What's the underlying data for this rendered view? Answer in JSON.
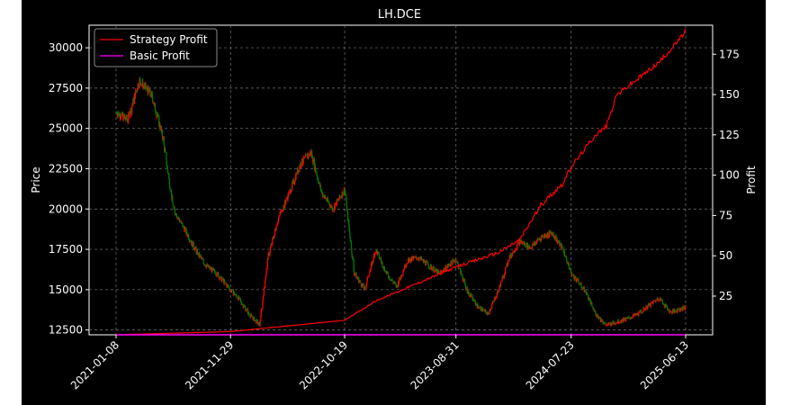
{
  "chart_data": {
    "type": "candlestick+line",
    "title": "LH.DCE",
    "ylabel_left": "Price",
    "ylabel_right": "Profit",
    "x_ticks": [
      "2021-01-08",
      "2021-11-29",
      "2022-10-19",
      "2023-08-31",
      "2024-07-23",
      "2025-06-13"
    ],
    "y_left_ticks": [
      12500,
      15000,
      17500,
      20000,
      22500,
      25000,
      27500,
      30000
    ],
    "y_right_ticks": [
      25,
      50,
      75,
      100,
      125,
      150,
      175
    ],
    "ylim_left": [
      12200,
      31400
    ],
    "ylim_right": [
      1,
      193
    ],
    "grid": true,
    "legend_position": "upper-left",
    "legend": [
      {
        "label": "Strategy Profit",
        "color": "#ff0000"
      },
      {
        "label": "Basic Profit",
        "color": "#ff00ff"
      }
    ],
    "colors": {
      "up": "#ff0000",
      "down": "#008000",
      "background": "#000000",
      "text": "#ffffff"
    },
    "price_series": {
      "x": [
        "2021-01-08",
        "2021-02-10",
        "2021-03-15",
        "2021-04-20",
        "2021-05-20",
        "2021-06-20",
        "2021-07-20",
        "2021-08-20",
        "2021-09-20",
        "2021-10-20",
        "2021-11-29",
        "2021-12-20",
        "2022-01-20",
        "2022-02-20",
        "2022-03-15",
        "2022-04-15",
        "2022-05-15",
        "2022-06-15",
        "2022-07-15",
        "2022-08-15",
        "2022-09-15",
        "2022-10-19",
        "2022-11-15",
        "2022-12-15",
        "2023-01-15",
        "2023-02-15",
        "2023-03-15",
        "2023-04-15",
        "2023-05-15",
        "2023-06-15",
        "2023-07-15",
        "2023-08-31",
        "2023-09-30",
        "2023-10-30",
        "2023-11-30",
        "2023-12-30",
        "2024-01-30",
        "2024-02-28",
        "2024-03-30",
        "2024-04-30",
        "2024-05-30",
        "2024-06-30",
        "2024-07-23",
        "2024-08-30",
        "2024-09-30",
        "2024-10-30",
        "2024-11-30",
        "2024-12-30",
        "2025-01-30",
        "2025-02-28",
        "2025-03-30",
        "2025-04-30",
        "2025-05-30",
        "2025-06-13"
      ],
      "close": [
        26000,
        25500,
        28000,
        27000,
        24500,
        20000,
        18800,
        17500,
        16500,
        16000,
        15000,
        14500,
        13500,
        12800,
        17000,
        19500,
        21000,
        22800,
        23500,
        21000,
        20000,
        21200,
        16000,
        15000,
        17500,
        16000,
        15200,
        16800,
        17000,
        16500,
        16000,
        16900,
        15000,
        14000,
        13500,
        15000,
        17000,
        18000,
        17600,
        18300,
        18500,
        17500,
        16000,
        15000,
        13500,
        12800,
        13000,
        13200,
        13500,
        14000,
        14500,
        13600,
        13800,
        13900
      ]
    },
    "strategy_profit": {
      "x": [
        "2021-01-08",
        "2021-11-29",
        "2022-10-19",
        "2023-01-15",
        "2023-08-31",
        "2023-12-30",
        "2024-02-28",
        "2024-04-30",
        "2024-06-30",
        "2024-07-23",
        "2024-09-30",
        "2024-10-30",
        "2024-11-30",
        "2025-01-30",
        "2025-03-30",
        "2025-05-30",
        "2025-06-13"
      ],
      "values": [
        1,
        3,
        10,
        22,
        43,
        52,
        60,
        82,
        95,
        105,
        125,
        130,
        150,
        160,
        170,
        185,
        190
      ]
    },
    "basic_profit": {
      "x": [
        "2021-01-08",
        "2025-06-13"
      ],
      "values": [
        1,
        1
      ]
    }
  }
}
